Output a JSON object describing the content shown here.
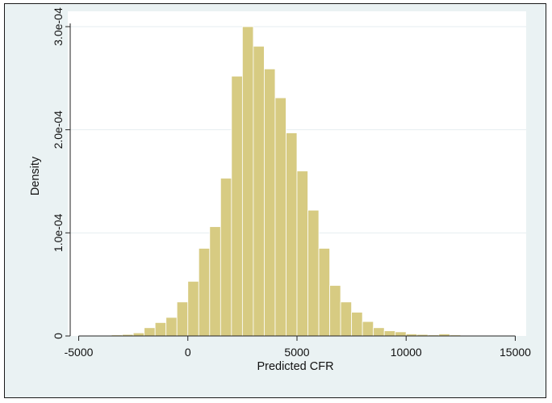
{
  "chart_data": {
    "type": "histogram",
    "xlabel": "Predicted CFR",
    "ylabel": "Density",
    "xlim": [
      -5500,
      15500
    ],
    "ylim": [
      0,
      0.0003
    ],
    "xticks": [
      {
        "value": -5000,
        "label": "-5000"
      },
      {
        "value": 0,
        "label": "0"
      },
      {
        "value": 5000,
        "label": "5000"
      },
      {
        "value": 10000,
        "label": "10000"
      },
      {
        "value": 15000,
        "label": "15000"
      }
    ],
    "yticks": [
      {
        "value": 0,
        "label": "0"
      },
      {
        "value": 0.0001,
        "label": "1.0e-04"
      },
      {
        "value": 0.0002,
        "label": "2.0e-04"
      },
      {
        "value": 0.0003,
        "label": "3.0e-04"
      }
    ],
    "grid": true,
    "bar_color": "#d7cb82",
    "bar_edge_color": "#ffffff",
    "bin_width": 500,
    "bins": [
      {
        "x0": -4000,
        "density": 5e-07
      },
      {
        "x0": -3500,
        "density": 1e-06
      },
      {
        "x0": -3000,
        "density": 1.5e-06
      },
      {
        "x0": -2500,
        "density": 3e-06
      },
      {
        "x0": -2000,
        "density": 8e-06
      },
      {
        "x0": -1500,
        "density": 1.3e-05
      },
      {
        "x0": -1000,
        "density": 1.8e-05
      },
      {
        "x0": -500,
        "density": 3.3e-05
      },
      {
        "x0": 0,
        "density": 5.3e-05
      },
      {
        "x0": 500,
        "density": 8.5e-05
      },
      {
        "x0": 1000,
        "density": 0.000106
      },
      {
        "x0": 1500,
        "density": 0.000153
      },
      {
        "x0": 2000,
        "density": 0.000252
      },
      {
        "x0": 2500,
        "density": 0.0003
      },
      {
        "x0": 3000,
        "density": 0.000281
      },
      {
        "x0": 3500,
        "density": 0.000259
      },
      {
        "x0": 4000,
        "density": 0.000231
      },
      {
        "x0": 4500,
        "density": 0.000197
      },
      {
        "x0": 5000,
        "density": 0.00016
      },
      {
        "x0": 5500,
        "density": 0.000122
      },
      {
        "x0": 6000,
        "density": 8.5e-05
      },
      {
        "x0": 6500,
        "density": 4.9e-05
      },
      {
        "x0": 7000,
        "density": 3.3e-05
      },
      {
        "x0": 7500,
        "density": 2.3e-05
      },
      {
        "x0": 8000,
        "density": 1.4e-05
      },
      {
        "x0": 8500,
        "density": 8e-06
      },
      {
        "x0": 9000,
        "density": 5e-06
      },
      {
        "x0": 9500,
        "density": 4e-06
      },
      {
        "x0": 10000,
        "density": 2e-06
      },
      {
        "x0": 10500,
        "density": 1.5e-06
      },
      {
        "x0": 11000,
        "density": 1e-06
      },
      {
        "x0": 11500,
        "density": 2e-06
      },
      {
        "x0": 12000,
        "density": 1e-06
      },
      {
        "x0": 12500,
        "density": 5e-07
      },
      {
        "x0": 13000,
        "density": 5e-07
      },
      {
        "x0": 13500,
        "density": 3e-07
      },
      {
        "x0": 14000,
        "density": 5e-07
      }
    ]
  }
}
